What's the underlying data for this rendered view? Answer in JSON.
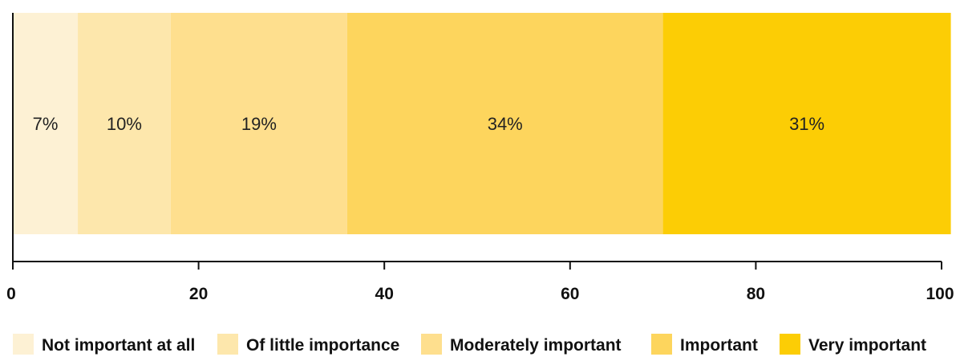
{
  "chart_data": {
    "type": "bar",
    "orientation": "horizontal",
    "stacked": true,
    "title": "",
    "xlabel": "",
    "ylabel": "",
    "xlim": [
      0,
      100
    ],
    "x_ticks": [
      0,
      20,
      40,
      60,
      80,
      100
    ],
    "grid": false,
    "legend_position": "bottom",
    "series": [
      {
        "name": "Not important at all",
        "value": 7,
        "label": "7%",
        "color": "#fdf1d4"
      },
      {
        "name": "Of little importance",
        "value": 10,
        "label": "10%",
        "color": "#fde7ac"
      },
      {
        "name": "Moderately important",
        "value": 19,
        "label": "19%",
        "color": "#fedf8e"
      },
      {
        "name": "Important",
        "value": 34,
        "label": "34%",
        "color": "#fdd55d"
      },
      {
        "name": "Very important",
        "value": 31,
        "label": "31%",
        "color": "#fccd05"
      }
    ]
  }
}
